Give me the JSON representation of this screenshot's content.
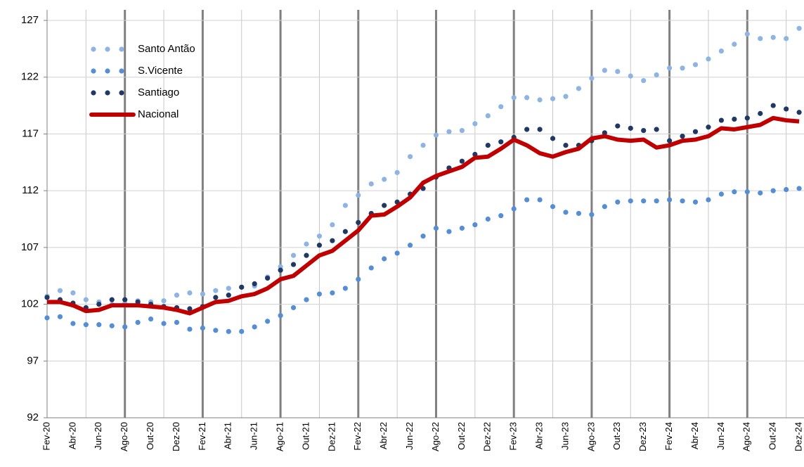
{
  "chart_data": {
    "type": "line",
    "categories": [
      "Fev-20",
      null,
      "Abr-20",
      null,
      "Jun-20",
      null,
      "Ago-20",
      null,
      "Out-20",
      null,
      "Dez-20",
      null,
      "Fev-21",
      null,
      "Abr-21",
      null,
      "Jun-21",
      null,
      "Ago-21",
      null,
      "Out-21",
      null,
      "Dez-21",
      null,
      "Fev-22",
      null,
      "Abr-22",
      null,
      "Jun-22",
      null,
      "Ago-22",
      null,
      "Out-22",
      null,
      "Dez-22",
      null,
      "Fev-23",
      null,
      "Abr-23",
      null,
      "Jun-23",
      null,
      "Ago-23",
      null,
      "Out-23",
      null,
      "Dez-23",
      null,
      "Fev-24",
      null,
      "Abr-24",
      null,
      "Jun-24",
      null,
      "Ago-24",
      null,
      "Out-24",
      null,
      "Dez-24"
    ],
    "series": [
      {
        "name": "Santo Antão",
        "color": "#8db4e2",
        "style": "dotted",
        "values": [
          102.7,
          103.2,
          103.0,
          102.4,
          102.2,
          102.0,
          102.1,
          102.3,
          102.2,
          102.3,
          102.8,
          103.0,
          102.9,
          103.2,
          103.4,
          103.5,
          103.6,
          104.4,
          105.3,
          106.3,
          107.3,
          108.0,
          109.0,
          110.7,
          111.6,
          112.6,
          113.0,
          113.6,
          115.0,
          116.0,
          116.9,
          117.2,
          117.3,
          117.9,
          118.6,
          119.4,
          120.2,
          120.2,
          120.0,
          120.1,
          120.3,
          121.0,
          121.9,
          122.6,
          122.5,
          122.1,
          121.7,
          122.2,
          122.8,
          122.8,
          123.1,
          123.6,
          124.3,
          124.9,
          125.8,
          125.4,
          125.5,
          125.4,
          126.3
        ]
      },
      {
        "name": "S.Vicente",
        "color": "#558ed5",
        "style": "dotted",
        "values": [
          100.8,
          100.9,
          100.3,
          100.2,
          100.2,
          100.1,
          100.0,
          100.4,
          100.7,
          100.3,
          100.4,
          99.8,
          99.9,
          99.7,
          99.6,
          99.6,
          100.0,
          100.5,
          101.0,
          101.7,
          102.4,
          102.9,
          103.0,
          103.4,
          104.2,
          105.2,
          106.0,
          106.5,
          107.2,
          108.0,
          108.7,
          108.4,
          108.7,
          109.0,
          109.5,
          109.8,
          110.4,
          111.2,
          111.2,
          110.6,
          110.1,
          110.0,
          109.9,
          110.6,
          111.0,
          111.1,
          111.1,
          111.1,
          111.2,
          111.1,
          111.0,
          111.2,
          111.7,
          111.9,
          111.9,
          111.8,
          112.0,
          112.1,
          112.2
        ]
      },
      {
        "name": "Santiago",
        "color": "#1f3864",
        "style": "dotted",
        "values": [
          102.6,
          102.4,
          102.1,
          101.7,
          102.0,
          102.4,
          102.4,
          102.2,
          102.0,
          101.8,
          101.7,
          101.6,
          101.8,
          102.6,
          102.8,
          103.5,
          103.8,
          104.3,
          105.0,
          105.5,
          106.3,
          107.2,
          107.6,
          108.4,
          109.2,
          110.0,
          110.7,
          111.0,
          111.7,
          112.2,
          113.2,
          114.0,
          114.6,
          115.2,
          116.0,
          116.3,
          116.7,
          117.4,
          117.4,
          116.6,
          116.0,
          116.0,
          116.4,
          117.1,
          117.7,
          117.5,
          117.3,
          117.4,
          116.4,
          116.8,
          117.2,
          117.6,
          118.2,
          118.3,
          118.4,
          118.8,
          119.5,
          119.2,
          118.9
        ]
      },
      {
        "name": "Nacional",
        "color": "#c00000",
        "style": "solid",
        "values": [
          102.2,
          102.2,
          101.9,
          101.4,
          101.5,
          101.9,
          101.9,
          101.9,
          101.8,
          101.7,
          101.5,
          101.2,
          101.7,
          102.2,
          102.3,
          102.7,
          102.9,
          103.4,
          104.2,
          104.5,
          105.4,
          106.3,
          106.7,
          107.6,
          108.5,
          109.8,
          109.9,
          110.6,
          111.4,
          112.7,
          113.3,
          113.7,
          114.1,
          114.9,
          115.0,
          115.7,
          116.5,
          116.0,
          115.3,
          115.0,
          115.4,
          115.7,
          116.6,
          116.8,
          116.5,
          116.4,
          116.5,
          115.8,
          116.0,
          116.4,
          116.5,
          116.8,
          117.5,
          117.4,
          117.6,
          117.8,
          118.4,
          118.2,
          118.1
        ]
      }
    ],
    "ylim": [
      92,
      127
    ],
    "yticks": [
      92,
      97,
      102,
      107,
      112,
      117,
      122,
      127
    ],
    "grid": true,
    "legend": "upper left"
  }
}
